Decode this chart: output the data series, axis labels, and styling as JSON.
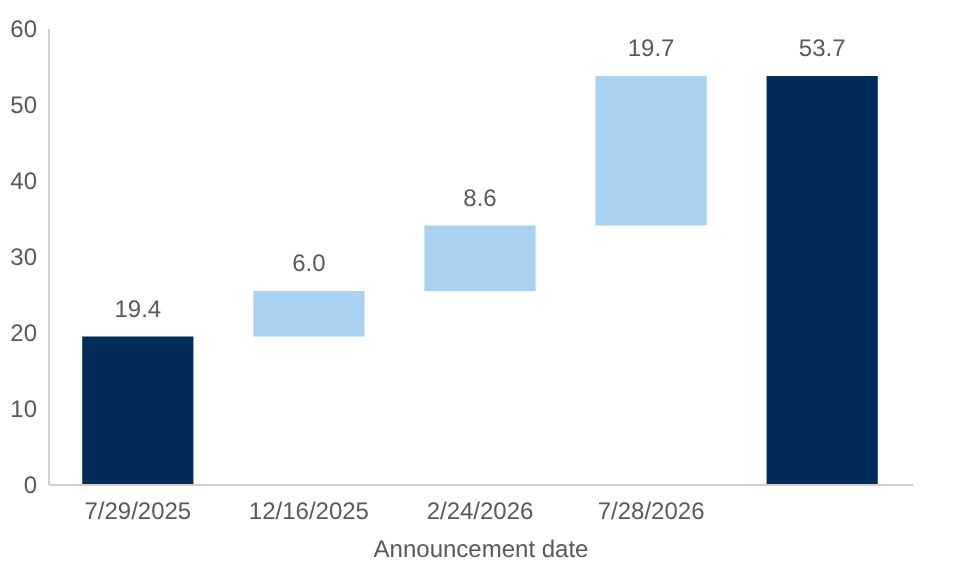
{
  "chart_data": {
    "type": "bar",
    "xlabel": "Announcement date",
    "categories": [
      "7/29/2025",
      "12/16/2025",
      "2/24/2026",
      "7/28/2026",
      null
    ],
    "values": [
      19.4,
      6.0,
      8.6,
      19.7,
      53.7
    ],
    "base": [
      0,
      19.4,
      25.4,
      34.0,
      0
    ],
    "colors": [
      "#002d5a",
      "#a9d1f0",
      "#a9d1f0",
      "#a9d1f0",
      "#002d5a"
    ],
    "value_labels": [
      "19.4",
      "6.0",
      "8.6",
      "19.7",
      "53.7"
    ],
    "ylim": [
      0,
      60
    ],
    "yticks": [
      0,
      10,
      20,
      30,
      40,
      50,
      60
    ],
    "grid": false
  }
}
